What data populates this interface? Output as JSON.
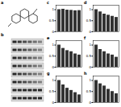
{
  "figure_labels": {
    "structure": "a",
    "blot": "b"
  },
  "chart_data": [
    {
      "type": "bar",
      "title": "c",
      "categories": [
        null,
        null,
        null,
        null,
        null,
        null
      ],
      "values": [
        1.0,
        1.02,
        0.98,
        0.97,
        0.95,
        0.96
      ],
      "color": "#333333",
      "ylim": [
        0,
        1.2
      ],
      "yticks": [
        0,
        0.5,
        1
      ],
      "grid": false,
      "tick_labels": "y"
    },
    {
      "type": "bar",
      "title": "d",
      "categories": [
        null,
        null,
        null,
        null,
        null,
        null
      ],
      "values": [
        1.0,
        0.9,
        0.8,
        0.75,
        0.7,
        0.65
      ],
      "color": "#333333",
      "ylim": [
        0,
        1.2
      ],
      "yticks": [
        0,
        0.5,
        1
      ],
      "grid": false,
      "tick_labels": "y"
    },
    {
      "type": "bar",
      "title": "e",
      "categories": [
        null,
        null,
        null,
        null,
        null,
        null
      ],
      "values": [
        1.0,
        0.85,
        0.75,
        0.7,
        0.6,
        0.55
      ],
      "color": "#333333",
      "ylim": [
        0,
        1.2
      ],
      "yticks": [
        0,
        0.5,
        1
      ],
      "grid": false,
      "tick_labels": "y"
    },
    {
      "type": "bar",
      "title": "f",
      "categories": [
        null,
        null,
        null,
        null,
        null,
        null
      ],
      "values": [
        1.0,
        0.8,
        0.7,
        0.6,
        0.55,
        0.45
      ],
      "color": "#333333",
      "ylim": [
        0,
        1.2
      ],
      "yticks": [
        0,
        0.5,
        1
      ],
      "grid": false,
      "tick_labels": "y"
    },
    {
      "type": "bar",
      "title": "g",
      "categories": [
        null,
        null,
        null,
        null,
        null,
        null
      ],
      "values": [
        1.0,
        0.8,
        0.65,
        0.55,
        0.45,
        0.35
      ],
      "color": "#333333",
      "ylim": [
        0,
        1.2
      ],
      "yticks": [
        0,
        0.5,
        1
      ],
      "grid": false,
      "tick_labels": "y"
    },
    {
      "type": "bar",
      "title": "h",
      "categories": [
        null,
        null,
        null,
        null,
        null,
        null
      ],
      "values": [
        1.0,
        0.85,
        0.75,
        0.6,
        0.5,
        0.4
      ],
      "color": "#333333",
      "ylim": [
        0,
        1.2
      ],
      "yticks": [
        0,
        0.5,
        1
      ],
      "grid": false,
      "tick_labels": "y"
    }
  ]
}
